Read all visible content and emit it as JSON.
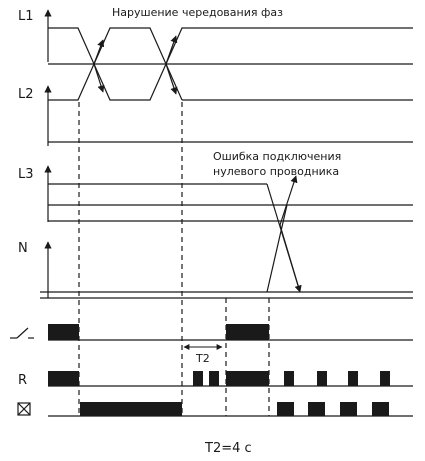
{
  "labels": {
    "l1": "L1",
    "l2": "L2",
    "l3": "L3",
    "n": "N",
    "r": "R",
    "fault_phase_sequence": "Нарушение чередования фаз",
    "fault_neutral_line1": "Ошибка подключения",
    "fault_neutral_line2": "нулевого проводника",
    "t2_label": "T2",
    "caption": "T2=4 c"
  },
  "icons": {
    "switch": "switch-symbol-icon",
    "fault_led": "crossed-lamp-icon"
  },
  "colors": {
    "line": "#1a1a1a",
    "background": "#ffffff"
  }
}
